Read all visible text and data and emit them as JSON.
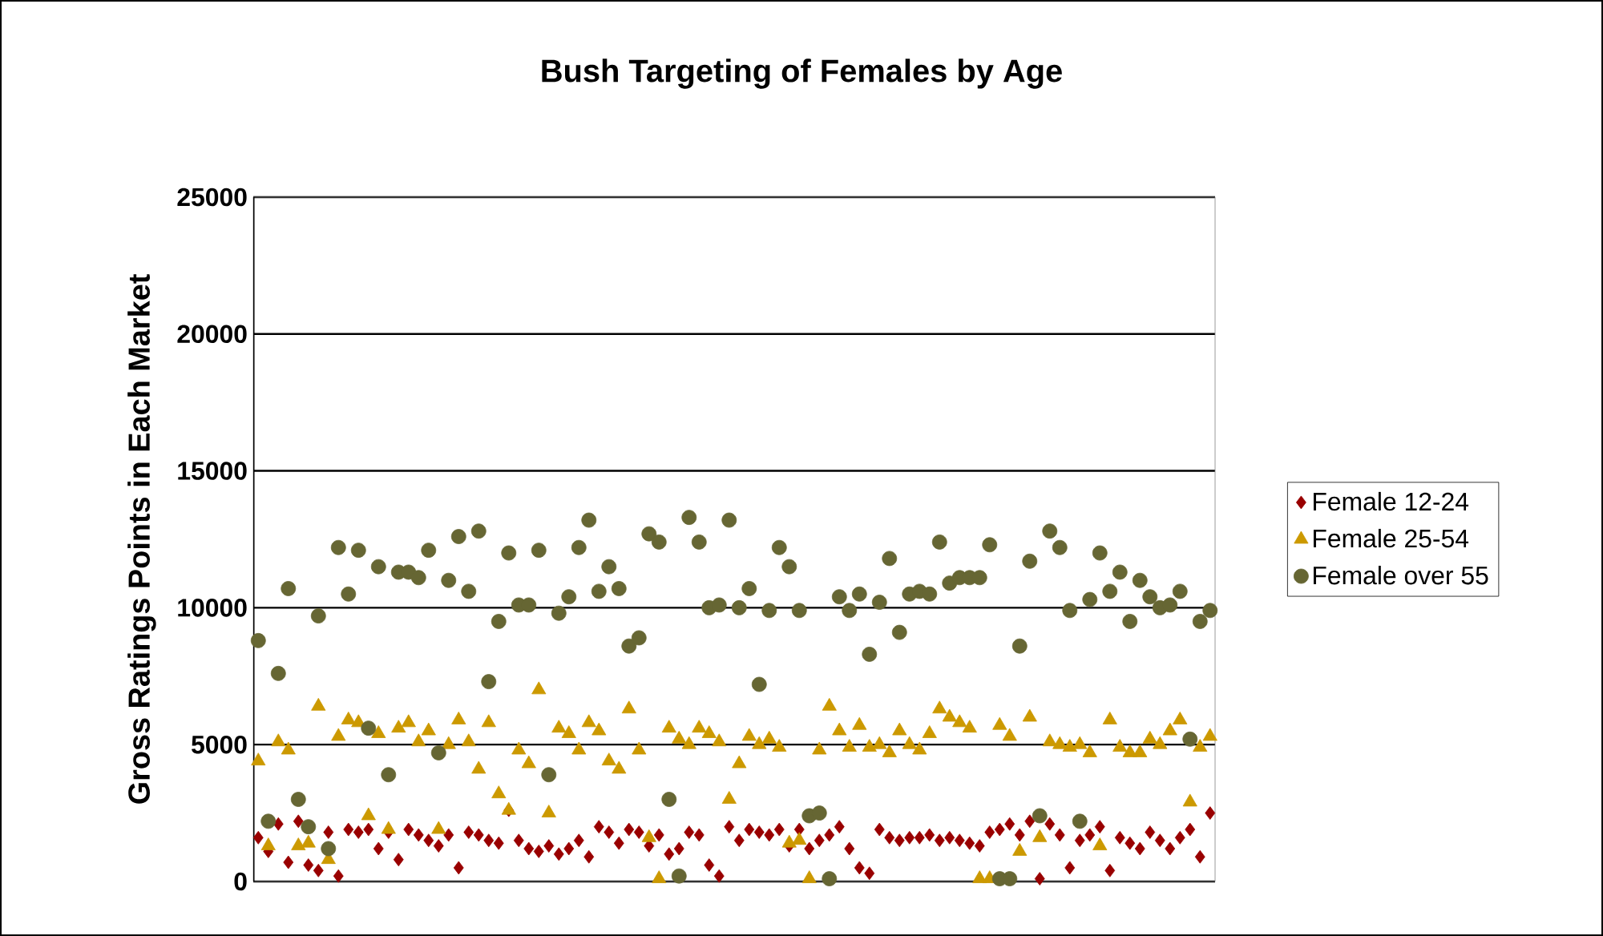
{
  "chart_data": {
    "type": "scatter",
    "title": "Bush Targeting of Females by Age",
    "ylabel": "Gross Ratings Points in Each Market",
    "categories": [
      null,
      null,
      null,
      null,
      null,
      null,
      null,
      null,
      null,
      null,
      null,
      null,
      null,
      null,
      null,
      null,
      null,
      null,
      null,
      null,
      null,
      null,
      null,
      null,
      null,
      null,
      null,
      null,
      null,
      null,
      null,
      null,
      null,
      null,
      null,
      null,
      null,
      null,
      null,
      null,
      null,
      null,
      null,
      null,
      null,
      null,
      null,
      null,
      null,
      null,
      null,
      null,
      null,
      null,
      null,
      null,
      null,
      null,
      null,
      null,
      null,
      null,
      null,
      null,
      null,
      null,
      null,
      null,
      null,
      null,
      null,
      null,
      null,
      null,
      null,
      null,
      null,
      null,
      null,
      null,
      null,
      null,
      null,
      null,
      null,
      null,
      null,
      null,
      null,
      null,
      null,
      null,
      null,
      null,
      null,
      null
    ],
    "series": [
      {
        "name": "Female 12-24",
        "color": "#990000",
        "marker": "diamond",
        "values": [
          1600,
          1100,
          2100,
          700,
          2200,
          600,
          400,
          1800,
          200,
          1900,
          1800,
          1900,
          1200,
          1800,
          800,
          1900,
          1700,
          1500,
          1300,
          1700,
          500,
          1800,
          1700,
          1500,
          1400,
          2600,
          1500,
          1200,
          1100,
          1300,
          1000,
          1200,
          1500,
          900,
          2000,
          1800,
          1400,
          1900,
          1800,
          1300,
          1700,
          1000,
          1200,
          1800,
          1700,
          600,
          200,
          2000,
          1500,
          1900,
          1800,
          1700,
          1900,
          1300,
          1900,
          1200,
          1500,
          1700,
          2000,
          1200,
          500,
          300,
          1900,
          1600,
          1500,
          1600,
          1600,
          1700,
          1500,
          1600,
          1500,
          1400,
          1300,
          1800,
          1900,
          2100,
          1700,
          2200,
          100,
          2100,
          1700,
          500,
          1500,
          1700,
          2000,
          400,
          1600,
          1400,
          1200,
          1800,
          1500,
          1200,
          1600,
          1900,
          900,
          2500
        ]
      },
      {
        "name": "Female 25-54",
        "color": "#cc9900",
        "marker": "triangle",
        "values": [
          4400,
          1300,
          5100,
          4800,
          1300,
          1400,
          6400,
          800,
          5300,
          5900,
          5800,
          2400,
          5400,
          1900,
          5600,
          5800,
          5100,
          5500,
          1900,
          5000,
          5900,
          5100,
          4100,
          5800,
          3200,
          2600,
          4800,
          4300,
          7000,
          2500,
          5600,
          5400,
          4800,
          5800,
          5500,
          4400,
          4100,
          6300,
          4800,
          1600,
          100,
          5600,
          5200,
          5000,
          5600,
          5400,
          5100,
          3000,
          4300,
          5300,
          5000,
          5200,
          4900,
          1400,
          1500,
          100,
          4800,
          6400,
          5500,
          4900,
          5700,
          4900,
          5000,
          4700,
          5500,
          5000,
          4800,
          5400,
          6300,
          6000,
          5800,
          5600,
          100,
          100,
          5700,
          5300,
          1100,
          6000,
          1600,
          5100,
          5000,
          4900,
          5000,
          4700,
          1300,
          5900,
          4900,
          4700,
          4700,
          5200,
          5000,
          5500,
          5900,
          2900,
          4900,
          5300
        ]
      },
      {
        "name": "Female over 55",
        "color": "#666633",
        "marker": "circle",
        "values": [
          8800,
          2200,
          7600,
          10700,
          3000,
          2000,
          9700,
          1200,
          12200,
          10500,
          12100,
          5600,
          11500,
          3900,
          11300,
          11300,
          11100,
          12100,
          4700,
          11000,
          12600,
          10600,
          12800,
          7300,
          9500,
          12000,
          10100,
          10100,
          12100,
          3900,
          9800,
          10400,
          12200,
          13200,
          10600,
          11500,
          10700,
          8600,
          8900,
          12700,
          12400,
          3000,
          200,
          13300,
          12400,
          10000,
          10100,
          13200,
          10000,
          10700,
          7200,
          9900,
          12200,
          11500,
          9900,
          2400,
          2500,
          100,
          10400,
          9900,
          10500,
          8300,
          10200,
          11800,
          9100,
          10500,
          10600,
          10500,
          12400,
          10900,
          11100,
          11100,
          11100,
          12300,
          100,
          100,
          8600,
          11700,
          2400,
          12800,
          12200,
          9900,
          2200,
          10300,
          12000,
          10600,
          11300,
          9500,
          11000,
          10400,
          10000,
          10100,
          10600,
          5200,
          9500,
          9900
        ]
      }
    ],
    "ylim": [
      0,
      25000
    ],
    "yticks": [
      0,
      5000,
      10000,
      15000,
      20000,
      25000
    ],
    "grid": "y",
    "legend": "right"
  }
}
